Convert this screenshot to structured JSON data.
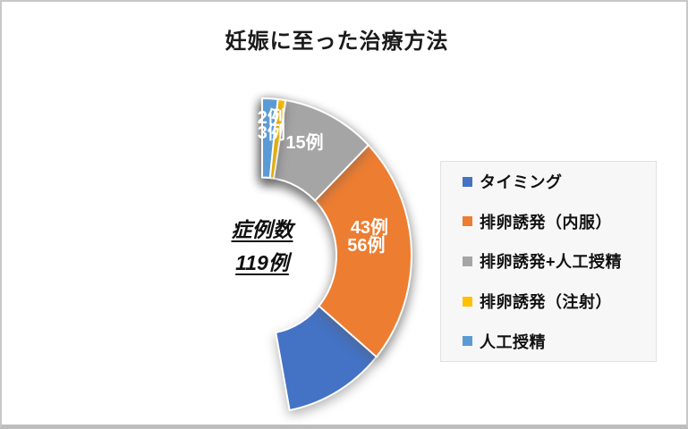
{
  "chart_data": {
    "type": "pie",
    "subtype": "donut",
    "title": "妊娠に至った治療方法",
    "total": 119,
    "total_label": {
      "line1": "症例数",
      "line2": "119例"
    },
    "slices": [
      {
        "label": "タイミング",
        "value": 56,
        "data_label": "56例",
        "color": "#4472C4"
      },
      {
        "label": "排卵誘発（内服）",
        "value": 43,
        "data_label": "43例",
        "color": "#ED7D31"
      },
      {
        "label": "排卵誘発+人工授精",
        "value": 15,
        "data_label": "15例",
        "color": "#A5A5A5"
      },
      {
        "label": "排卵誘発（注射）",
        "value": 3,
        "data_label": "3例",
        "color": "#FFC000"
      },
      {
        "label": "人工授精",
        "value": 2,
        "data_label": "2例",
        "color": "#5B9BD5"
      }
    ],
    "start_angle_deg": 0,
    "direction": "clockwise",
    "legend_position": "right",
    "data_label_color": "#ffffff",
    "slice_border_color": "#ffffff"
  }
}
